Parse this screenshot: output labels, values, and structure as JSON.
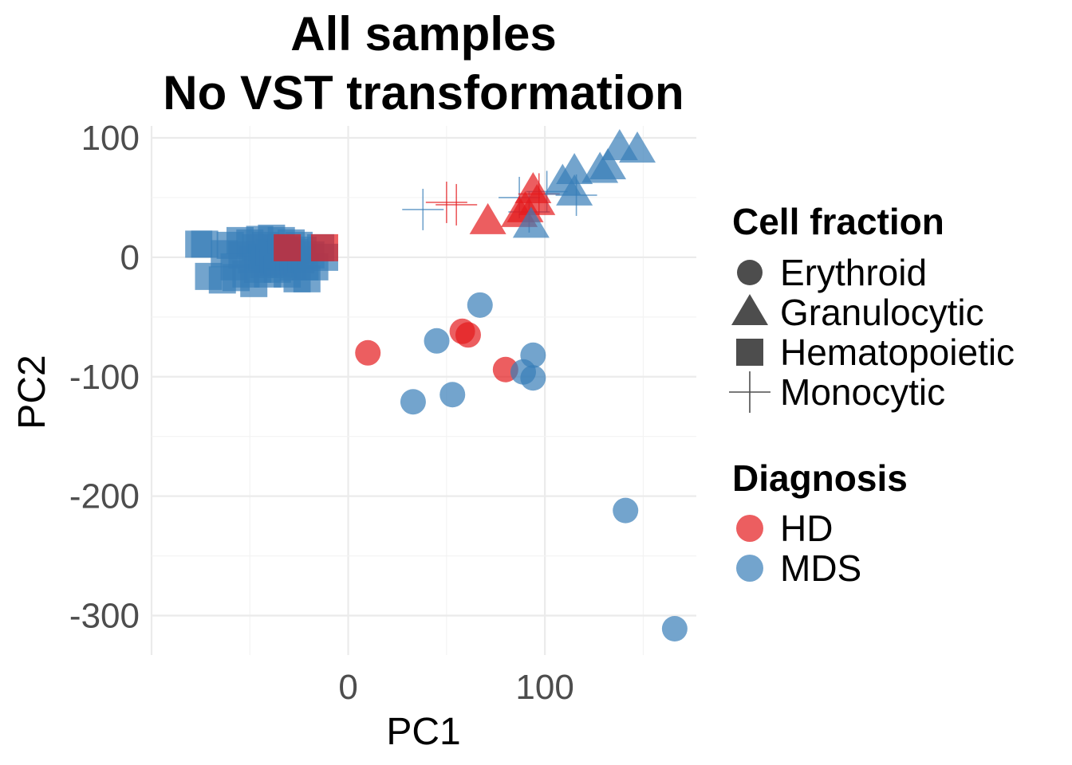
{
  "chart_data": {
    "type": "scatter",
    "title": [
      "All samples",
      "No VST transformation"
    ],
    "xlabel": "PC1",
    "ylabel": "PC2",
    "xlim": [
      -100,
      177
    ],
    "ylim": [
      -333,
      110
    ],
    "xticks": [
      0,
      100
    ],
    "xtick_labels": [
      "0",
      "100"
    ],
    "yticks": [
      100,
      0,
      -100,
      -200,
      -300
    ],
    "ytick_labels": [
      "100",
      "0",
      "-100",
      "-200",
      "-300"
    ],
    "grid": true,
    "legend_position": "right",
    "shape_legend": {
      "title": "Cell fraction",
      "entries": [
        {
          "label": "Erythroid",
          "shape": "circle"
        },
        {
          "label": "Granulocytic",
          "shape": "triangle"
        },
        {
          "label": "Hematopoietic",
          "shape": "square"
        },
        {
          "label": "Monocytic",
          "shape": "cross"
        }
      ]
    },
    "color_legend": {
      "title": "Diagnosis",
      "entries": [
        {
          "label": "HD",
          "color": "#e41a1c"
        },
        {
          "label": "MDS",
          "color": "#377eb8"
        }
      ]
    },
    "colors": {
      "HD": "#e41a1c",
      "MDS": "#377eb8",
      "legend_key": "#4d4d4d"
    },
    "points": [
      {
        "x": -76,
        "y": 11,
        "shape": "square",
        "diagnosis": "MDS"
      },
      {
        "x": -73,
        "y": 11,
        "shape": "square",
        "diagnosis": "MDS"
      },
      {
        "x": -71,
        "y": -16,
        "shape": "square",
        "diagnosis": "MDS"
      },
      {
        "x": -64,
        "y": -19,
        "shape": "square",
        "diagnosis": "MDS"
      },
      {
        "x": -63,
        "y": 3,
        "shape": "square",
        "diagnosis": "MDS"
      },
      {
        "x": -60,
        "y": 10,
        "shape": "square",
        "diagnosis": "MDS"
      },
      {
        "x": -58,
        "y": -8,
        "shape": "square",
        "diagnosis": "MDS"
      },
      {
        "x": -57,
        "y": -17,
        "shape": "square",
        "diagnosis": "MDS"
      },
      {
        "x": -55,
        "y": 14,
        "shape": "square",
        "diagnosis": "MDS"
      },
      {
        "x": -54,
        "y": 2,
        "shape": "square",
        "diagnosis": "MDS"
      },
      {
        "x": -52,
        "y": -14,
        "shape": "square",
        "diagnosis": "MDS"
      },
      {
        "x": -50,
        "y": 12,
        "shape": "square",
        "diagnosis": "MDS"
      },
      {
        "x": -49,
        "y": -2,
        "shape": "square",
        "diagnosis": "MDS"
      },
      {
        "x": -48,
        "y": -22,
        "shape": "square",
        "diagnosis": "MDS"
      },
      {
        "x": -47,
        "y": 8,
        "shape": "square",
        "diagnosis": "MDS"
      },
      {
        "x": -46,
        "y": -10,
        "shape": "square",
        "diagnosis": "MDS"
      },
      {
        "x": -45,
        "y": 15,
        "shape": "square",
        "diagnosis": "MDS"
      },
      {
        "x": -44,
        "y": 0,
        "shape": "square",
        "diagnosis": "MDS"
      },
      {
        "x": -43,
        "y": -6,
        "shape": "square",
        "diagnosis": "MDS"
      },
      {
        "x": -42,
        "y": 10,
        "shape": "square",
        "diagnosis": "MDS"
      },
      {
        "x": -41,
        "y": -14,
        "shape": "square",
        "diagnosis": "MDS"
      },
      {
        "x": -40,
        "y": 4,
        "shape": "square",
        "diagnosis": "MDS"
      },
      {
        "x": -39,
        "y": 16,
        "shape": "square",
        "diagnosis": "MDS"
      },
      {
        "x": -38,
        "y": -4,
        "shape": "square",
        "diagnosis": "MDS"
      },
      {
        "x": -37,
        "y": 8,
        "shape": "square",
        "diagnosis": "MDS"
      },
      {
        "x": -36,
        "y": -10,
        "shape": "square",
        "diagnosis": "MDS"
      },
      {
        "x": -35,
        "y": 2,
        "shape": "square",
        "diagnosis": "MDS"
      },
      {
        "x": -34,
        "y": 14,
        "shape": "square",
        "diagnosis": "MDS"
      },
      {
        "x": -33,
        "y": -6,
        "shape": "square",
        "diagnosis": "MDS"
      },
      {
        "x": -32,
        "y": 6,
        "shape": "square",
        "diagnosis": "MDS"
      },
      {
        "x": -31,
        "y": -14,
        "shape": "square",
        "diagnosis": "MDS"
      },
      {
        "x": -30,
        "y": 0,
        "shape": "square",
        "diagnosis": "MDS"
      },
      {
        "x": -29,
        "y": 12,
        "shape": "square",
        "diagnosis": "MDS"
      },
      {
        "x": -28,
        "y": -8,
        "shape": "square",
        "diagnosis": "MDS"
      },
      {
        "x": -27,
        "y": 4,
        "shape": "square",
        "diagnosis": "MDS"
      },
      {
        "x": -26,
        "y": -18,
        "shape": "square",
        "diagnosis": "MDS"
      },
      {
        "x": -25,
        "y": 10,
        "shape": "square",
        "diagnosis": "MDS"
      },
      {
        "x": -24,
        "y": -2,
        "shape": "square",
        "diagnosis": "MDS"
      },
      {
        "x": -23,
        "y": 6,
        "shape": "square",
        "diagnosis": "MDS"
      },
      {
        "x": -22,
        "y": -8,
        "shape": "square",
        "diagnosis": "MDS"
      },
      {
        "x": -21,
        "y": -18,
        "shape": "square",
        "diagnosis": "MDS"
      },
      {
        "x": -19,
        "y": 2,
        "shape": "square",
        "diagnosis": "MDS"
      },
      {
        "x": -17,
        "y": -8,
        "shape": "square",
        "diagnosis": "MDS"
      },
      {
        "x": -14,
        "y": 8,
        "shape": "square",
        "diagnosis": "MDS"
      },
      {
        "x": -12,
        "y": 0,
        "shape": "square",
        "diagnosis": "MDS"
      },
      {
        "x": -31,
        "y": 8,
        "shape": "square",
        "diagnosis": "HD"
      },
      {
        "x": -12,
        "y": 8,
        "shape": "square",
        "diagnosis": "HD"
      },
      {
        "x": 38,
        "y": 40,
        "shape": "cross",
        "diagnosis": "MDS"
      },
      {
        "x": 50,
        "y": 46,
        "shape": "cross",
        "diagnosis": "HD"
      },
      {
        "x": 55,
        "y": 44,
        "shape": "cross",
        "diagnosis": "HD"
      },
      {
        "x": 87,
        "y": 50,
        "shape": "cross",
        "diagnosis": "MDS"
      },
      {
        "x": 92,
        "y": 38,
        "shape": "cross",
        "diagnosis": "MDS"
      },
      {
        "x": 97,
        "y": 53,
        "shape": "cross",
        "diagnosis": "HD"
      },
      {
        "x": 101,
        "y": 55,
        "shape": "cross",
        "diagnosis": "MDS"
      },
      {
        "x": 116,
        "y": 52,
        "shape": "cross",
        "diagnosis": "MDS"
      },
      {
        "x": 71,
        "y": 30,
        "shape": "triangle",
        "diagnosis": "HD"
      },
      {
        "x": 87,
        "y": 36,
        "shape": "triangle",
        "diagnosis": "HD"
      },
      {
        "x": 90,
        "y": 40,
        "shape": "triangle",
        "diagnosis": "HD"
      },
      {
        "x": 94,
        "y": 56,
        "shape": "triangle",
        "diagnosis": "HD"
      },
      {
        "x": 96,
        "y": 46,
        "shape": "triangle",
        "diagnosis": "HD"
      },
      {
        "x": 93,
        "y": 27,
        "shape": "triangle",
        "diagnosis": "MDS"
      },
      {
        "x": 109,
        "y": 63,
        "shape": "triangle",
        "diagnosis": "MDS"
      },
      {
        "x": 115,
        "y": 54,
        "shape": "triangle",
        "diagnosis": "MDS"
      },
      {
        "x": 115,
        "y": 72,
        "shape": "triangle",
        "diagnosis": "MDS"
      },
      {
        "x": 128,
        "y": 73,
        "shape": "triangle",
        "diagnosis": "MDS"
      },
      {
        "x": 132,
        "y": 76,
        "shape": "triangle",
        "diagnosis": "MDS"
      },
      {
        "x": 138,
        "y": 92,
        "shape": "triangle",
        "diagnosis": "MDS"
      },
      {
        "x": 147,
        "y": 90,
        "shape": "triangle",
        "diagnosis": "MDS"
      },
      {
        "x": 10,
        "y": -80,
        "shape": "circle",
        "diagnosis": "HD"
      },
      {
        "x": 58,
        "y": -62,
        "shape": "circle",
        "diagnosis": "HD"
      },
      {
        "x": 61,
        "y": -65,
        "shape": "circle",
        "diagnosis": "HD"
      },
      {
        "x": 80,
        "y": -94,
        "shape": "circle",
        "diagnosis": "HD"
      },
      {
        "x": 33,
        "y": -121,
        "shape": "circle",
        "diagnosis": "MDS"
      },
      {
        "x": 45,
        "y": -70,
        "shape": "circle",
        "diagnosis": "MDS"
      },
      {
        "x": 53,
        "y": -115,
        "shape": "circle",
        "diagnosis": "MDS"
      },
      {
        "x": 67,
        "y": -40,
        "shape": "circle",
        "diagnosis": "MDS"
      },
      {
        "x": 89,
        "y": -96,
        "shape": "circle",
        "diagnosis": "MDS"
      },
      {
        "x": 94,
        "y": -82,
        "shape": "circle",
        "diagnosis": "MDS"
      },
      {
        "x": 94,
        "y": -101,
        "shape": "circle",
        "diagnosis": "MDS"
      },
      {
        "x": 141,
        "y": -212,
        "shape": "circle",
        "diagnosis": "MDS"
      },
      {
        "x": 166,
        "y": -311,
        "shape": "circle",
        "diagnosis": "MDS"
      }
    ]
  }
}
